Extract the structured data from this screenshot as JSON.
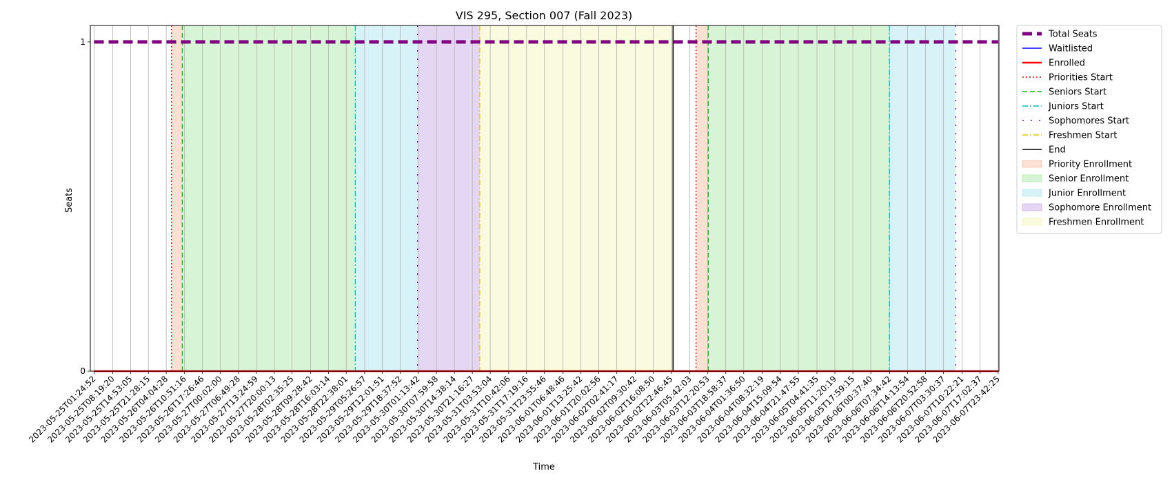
{
  "chart_data": {
    "type": "line",
    "title": "VIS 295, Section 007 (Fall 2023)",
    "xlabel": "Time",
    "ylabel": "Seats",
    "ylim": [
      0,
      1.05
    ],
    "yticks": [
      0,
      1
    ],
    "xlim": [
      "2023-05-25T00:00:00",
      "2023-06-08T00:00:00"
    ],
    "grid": "x-major",
    "legend_position": "outside-right",
    "x_tick_labels": [
      "2023-05-25T01:24:52",
      "2023-05-25T08:19:20",
      "2023-05-25T14:53:05",
      "2023-05-25T21:28:15",
      "2023-05-26T04:04:28",
      "2023-05-26T10:51:16",
      "2023-05-26T17:26:46",
      "2023-05-27T00:02:00",
      "2023-05-27T06:49:28",
      "2023-05-27T13:24:59",
      "2023-05-27T20:00:13",
      "2023-05-28T02:35:25",
      "2023-05-28T09:28:42",
      "2023-05-28T16:03:14",
      "2023-05-28T22:38:01",
      "2023-05-29T05:26:57",
      "2023-05-29T12:01:51",
      "2023-05-29T18:37:52",
      "2023-05-30T01:13:42",
      "2023-05-30T07:59:58",
      "2023-05-30T14:38:14",
      "2023-05-30T21:16:27",
      "2023-05-31T03:53:04",
      "2023-05-31T10:42:06",
      "2023-05-31T17:19:16",
      "2023-05-31T23:55:46",
      "2023-06-01T06:48:46",
      "2023-06-01T13:25:42",
      "2023-06-01T20:02:56",
      "2023-06-02T02:41:17",
      "2023-06-02T09:30:42",
      "2023-06-02T16:08:50",
      "2023-06-02T22:46:45",
      "2023-06-03T05:42:03",
      "2023-06-03T12:20:53",
      "2023-06-03T18:58:37",
      "2023-06-04T01:36:50",
      "2023-06-04T08:32:19",
      "2023-06-04T15:09:54",
      "2023-06-04T21:47:55",
      "2023-06-05T04:41:35",
      "2023-06-05T11:20:19",
      "2023-06-05T17:59:15",
      "2023-06-06T00:37:40",
      "2023-06-06T07:34:42",
      "2023-06-06T14:13:54",
      "2023-06-06T20:52:58",
      "2023-06-07T03:30:37",
      "2023-06-07T10:22:21",
      "2023-06-07T17:02:37",
      "2023-06-07T23:42:25"
    ],
    "series": [
      {
        "name": "Total Seats",
        "color": "#800080",
        "style": "dashed-thick",
        "x": [
          "2023-05-25T01:24:52",
          "2023-06-07T23:42:25"
        ],
        "y": [
          1,
          1
        ]
      },
      {
        "name": "Waitlisted",
        "color": "#0000ff",
        "style": "solid",
        "x": [
          "2023-05-25T01:24:52",
          "2023-06-07T23:42:25"
        ],
        "y": [
          0,
          0
        ]
      },
      {
        "name": "Enrolled",
        "color": "#ff0000",
        "style": "solid-thick",
        "x": [
          "2023-05-25T01:24:52",
          "2023-06-07T23:42:25"
        ],
        "y": [
          0,
          0
        ]
      }
    ],
    "vlines": [
      {
        "name": "Priorities Start",
        "color": "#ff0000",
        "style": "dotted",
        "x": [
          "2023-05-26T06:00:00",
          "2023-06-03T08:00:00"
        ]
      },
      {
        "name": "Seniors Start",
        "color": "#00bb00",
        "style": "dashed",
        "x": [
          "2023-05-26T10:00:00",
          "2023-06-03T12:30:00"
        ]
      },
      {
        "name": "Juniors Start",
        "color": "#00bfbf",
        "style": "dashdot",
        "x": [
          "2023-05-29T02:00:00",
          "2023-06-06T07:30:00"
        ]
      },
      {
        "name": "Sophomores Start",
        "color": "#6600cc",
        "style": "loosely-dotted",
        "x": [
          "2023-05-30T01:00:00",
          "2023-06-07T08:00:00"
        ]
      },
      {
        "name": "Freshmen Start",
        "color": "#e6c800",
        "style": "dashdot",
        "x": [
          "2023-05-31T00:00:00"
        ]
      },
      {
        "name": "End",
        "color": "#000000",
        "style": "solid",
        "x": [
          "2023-06-02T23:30:00"
        ]
      }
    ],
    "spans": [
      {
        "name": "Priority Enrollment",
        "color": "#f4a582",
        "ranges": [
          [
            "2023-05-26T06:00:00",
            "2023-05-26T10:00:00"
          ],
          [
            "2023-06-03T08:00:00",
            "2023-06-03T12:30:00"
          ]
        ]
      },
      {
        "name": "Senior Enrollment",
        "color": "#90e08a",
        "ranges": [
          [
            "2023-05-26T10:00:00",
            "2023-05-29T02:00:00"
          ],
          [
            "2023-06-03T12:30:00",
            "2023-06-06T07:30:00"
          ]
        ]
      },
      {
        "name": "Junior Enrollment",
        "color": "#8fdde8",
        "ranges": [
          [
            "2023-05-29T02:00:00",
            "2023-05-30T01:00:00"
          ],
          [
            "2023-06-06T07:30:00",
            "2023-06-07T08:00:00"
          ]
        ]
      },
      {
        "name": "Sophomore Enrollment",
        "color": "#b48be0",
        "ranges": [
          [
            "2023-05-30T01:00:00",
            "2023-05-31T00:00:00"
          ]
        ]
      },
      {
        "name": "Freshmen Enrollment",
        "color": "#f0f0a0",
        "ranges": [
          [
            "2023-05-31T00:00:00",
            "2023-06-02T23:30:00"
          ]
        ]
      }
    ]
  }
}
